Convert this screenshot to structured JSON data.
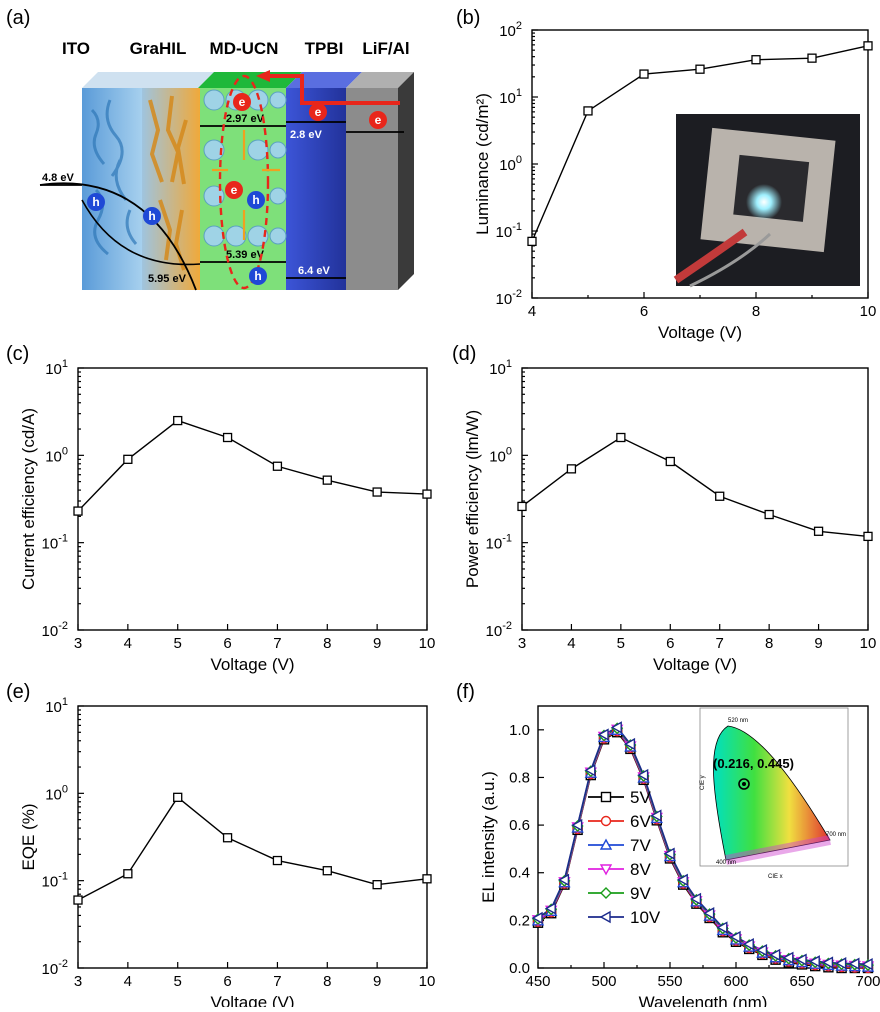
{
  "panels": {
    "a": {
      "label": "(a)",
      "layers": [
        "ITO",
        "GraHIL",
        "MD-UCN",
        "TPBI",
        "LiF/Al"
      ],
      "levels": [
        "2.97 eV",
        "2.8 eV",
        "4.8 eV",
        "5.95 eV",
        "5.39 eV",
        "6.4 eV"
      ],
      "carriers": {
        "electron": "e",
        "hole": "h"
      },
      "colors": {
        "ito": "#7fb3e0",
        "grahil": "#e8a33a",
        "mducn": "#7fe07f",
        "tpbi": "#3b4fcf",
        "lif": "#8a8a8a",
        "arrow": "#e8261b",
        "ellipse": "#e8261b",
        "electron": "#e8261b",
        "hole": "#1f49d6"
      }
    },
    "b": {
      "label": "(b)"
    },
    "c": {
      "label": "(c)"
    },
    "d": {
      "label": "(d)"
    },
    "e": {
      "label": "(e)"
    },
    "f": {
      "label": "(f)",
      "cie_point": "(0.216, 0.445)",
      "cie_labels": [
        "520 nm",
        "700 nm",
        "400 nm"
      ],
      "cie_axes": [
        "CIE x",
        "CIE y"
      ]
    }
  },
  "chart_data": [
    {
      "id": "b",
      "type": "line",
      "xlabel": "Voltage (V)",
      "ylabel": "Luminance (cd/m²)",
      "x": [
        4,
        5,
        6,
        7,
        8,
        9,
        10
      ],
      "series": [
        {
          "values": [
            0.07,
            6.2,
            22,
            26,
            36,
            38,
            58
          ]
        }
      ],
      "xlim": [
        4,
        10
      ],
      "ylim": [
        0.01,
        100
      ],
      "yscale": "log",
      "xticks": [
        "4",
        "6",
        "8",
        "10"
      ],
      "yticks": [
        [
          "10",
          "-2"
        ],
        [
          "10",
          "-1"
        ],
        [
          "10",
          "0"
        ],
        [
          "10",
          "1"
        ],
        [
          "10",
          "2"
        ]
      ],
      "inset": "photo of glowing device"
    },
    {
      "id": "c",
      "type": "line",
      "xlabel": "Voltage (V)",
      "ylabel": "Current efficiency (cd/A)",
      "x": [
        3,
        4,
        5,
        6,
        7,
        8,
        9,
        10
      ],
      "series": [
        {
          "values": [
            0.23,
            0.9,
            2.5,
            1.6,
            0.75,
            0.52,
            0.38,
            0.36
          ]
        }
      ],
      "xlim": [
        3,
        10
      ],
      "ylim": [
        0.01,
        10
      ],
      "yscale": "log",
      "xticks": [
        "3",
        "4",
        "5",
        "6",
        "7",
        "8",
        "9",
        "10"
      ],
      "yticks": [
        [
          "10",
          "-2"
        ],
        [
          "10",
          "-1"
        ],
        [
          "10",
          "0"
        ],
        [
          "10",
          "1"
        ]
      ]
    },
    {
      "id": "d",
      "type": "line",
      "xlabel": "Voltage (V)",
      "ylabel": "Power efficiency (lm/W)",
      "x": [
        3,
        4,
        5,
        6,
        7,
        8,
        9,
        10
      ],
      "series": [
        {
          "values": [
            0.26,
            0.7,
            1.6,
            0.85,
            0.34,
            0.21,
            0.135,
            0.118
          ]
        }
      ],
      "xlim": [
        3,
        10
      ],
      "ylim": [
        0.01,
        10
      ],
      "yscale": "log",
      "xticks": [
        "3",
        "4",
        "5",
        "6",
        "7",
        "8",
        "9",
        "10"
      ],
      "yticks": [
        [
          "10",
          "-2"
        ],
        [
          "10",
          "-1"
        ],
        [
          "10",
          "0"
        ],
        [
          "10",
          "1"
        ]
      ]
    },
    {
      "id": "e",
      "type": "line",
      "xlabel": "Voltage (V)",
      "ylabel": "EQE (%)",
      "x": [
        3,
        4,
        5,
        6,
        7,
        8,
        9,
        10
      ],
      "series": [
        {
          "values": [
            0.06,
            0.12,
            0.9,
            0.31,
            0.17,
            0.13,
            0.09,
            0.105
          ]
        }
      ],
      "xlim": [
        3,
        10
      ],
      "ylim": [
        0.01,
        10
      ],
      "yscale": "log",
      "xticks": [
        "3",
        "4",
        "5",
        "6",
        "7",
        "8",
        "9",
        "10"
      ],
      "yticks": [
        [
          "10",
          "-2"
        ],
        [
          "10",
          "-1"
        ],
        [
          "10",
          "0"
        ],
        [
          "10",
          "1"
        ]
      ]
    },
    {
      "id": "f",
      "type": "line",
      "xlabel": "Wavelength (nm)",
      "ylabel": "EL intensity (a.u.)",
      "x": [
        450,
        460,
        470,
        480,
        490,
        500,
        510,
        520,
        530,
        540,
        550,
        560,
        570,
        580,
        590,
        600,
        610,
        620,
        630,
        640,
        650,
        660,
        670,
        680,
        690,
        700
      ],
      "spectrum": [
        0.2,
        0.24,
        0.36,
        0.59,
        0.82,
        0.97,
        1.0,
        0.93,
        0.8,
        0.63,
        0.47,
        0.36,
        0.28,
        0.22,
        0.16,
        0.12,
        0.09,
        0.065,
        0.045,
        0.033,
        0.025,
        0.018,
        0.013,
        0.01,
        0.008,
        0.006
      ],
      "series": [
        {
          "name": "5V",
          "color": "#000000",
          "marker": "square"
        },
        {
          "name": "6V",
          "color": "#e8261b",
          "marker": "circle"
        },
        {
          "name": "7V",
          "color": "#1f49d6",
          "marker": "triangle-up"
        },
        {
          "name": "8V",
          "color": "#e020e0",
          "marker": "triangle-down"
        },
        {
          "name": "9V",
          "color": "#1a9e1a",
          "marker": "diamond"
        },
        {
          "name": "10V",
          "color": "#1b2a8c",
          "marker": "triangle-left"
        }
      ],
      "xlim": [
        450,
        700
      ],
      "ylim": [
        0,
        1.1
      ],
      "xticks": [
        "450",
        "500",
        "550",
        "600",
        "650",
        "700"
      ],
      "yticks": [
        "0.0",
        "0.2",
        "0.4",
        "0.6",
        "0.8",
        "1.0"
      ],
      "legend": "center-left"
    }
  ]
}
